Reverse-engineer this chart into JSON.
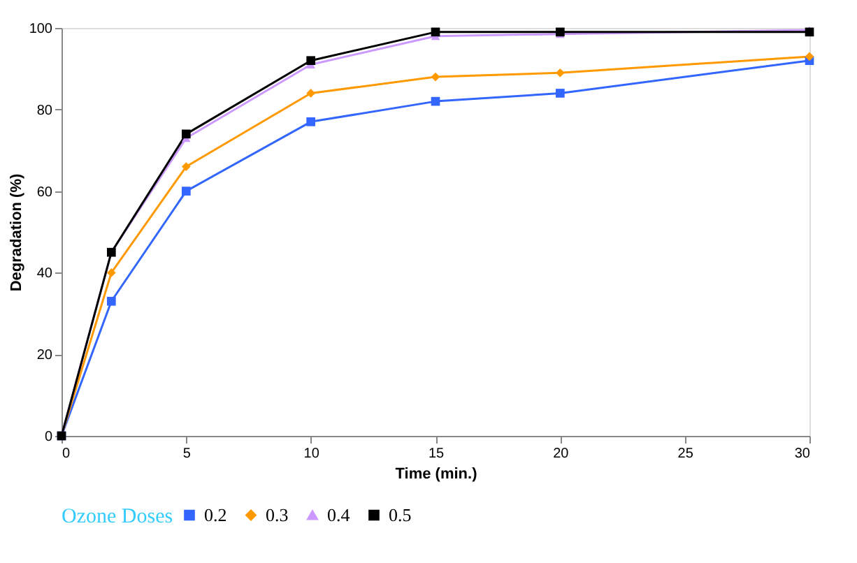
{
  "chart_data": {
    "type": "line",
    "xlabel": "Time (min.)",
    "ylabel": "Degradation (%)",
    "legend_title": "Ozone Doses",
    "x": [
      0,
      2,
      5,
      10,
      15,
      20,
      30
    ],
    "series": [
      {
        "name": "0.2",
        "color": "#3366ff",
        "marker": "square",
        "values": [
          0,
          33,
          60,
          77,
          82,
          84,
          92
        ]
      },
      {
        "name": "0.3",
        "color": "#ff9900",
        "marker": "diamond",
        "values": [
          0,
          40,
          66,
          84,
          88,
          89,
          93
        ]
      },
      {
        "name": "0.4",
        "color": "#cc99ff",
        "marker": "triangle",
        "values": [
          0,
          45,
          73,
          91,
          98,
          98.5,
          99.5
        ]
      },
      {
        "name": "0.5",
        "color": "#000000",
        "marker": "square",
        "values": [
          0,
          45,
          74,
          92,
          99,
          99,
          99
        ]
      }
    ],
    "xlim": [
      0,
      30
    ],
    "xticks": [
      0,
      5,
      10,
      15,
      20,
      25,
      30
    ],
    "ylim": [
      0,
      100
    ],
    "yticks": [
      0,
      20,
      40,
      60,
      80,
      100
    ],
    "grid": false,
    "legend": "bottom",
    "line_style": "solid"
  }
}
